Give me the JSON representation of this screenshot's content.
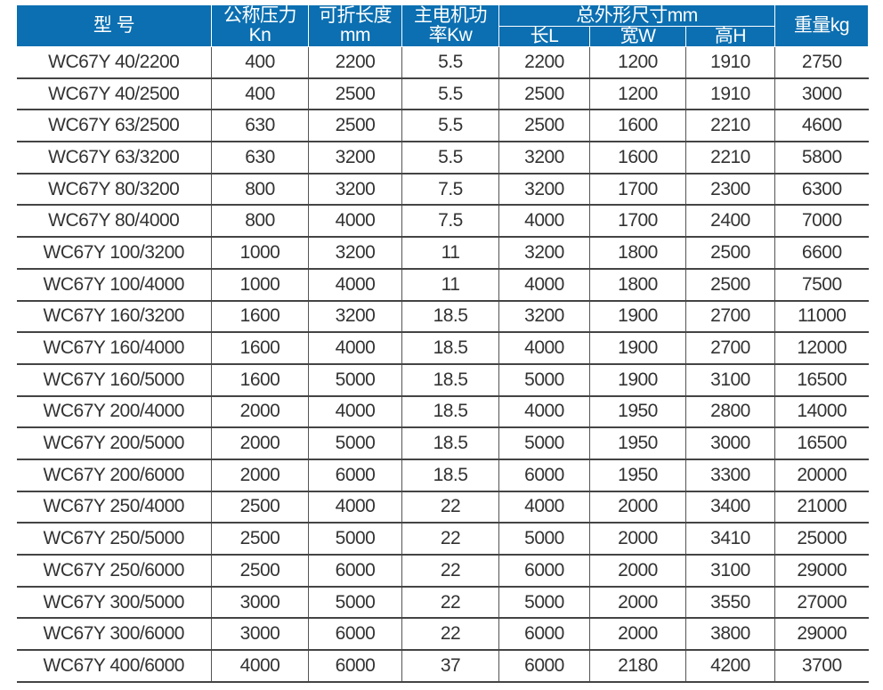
{
  "header": {
    "model": "型 号",
    "force": [
      "公称压力",
      "Kn"
    ],
    "length": [
      "可折长度",
      "mm"
    ],
    "power": [
      "主电机功",
      "率Kw"
    ],
    "dims": "总外形尺寸mm",
    "dim_l": "长L",
    "dim_w": "宽W",
    "dim_h": "高H",
    "weight": "重量kg"
  },
  "rows": [
    [
      "WC67Y 40/2200",
      "400",
      "2200",
      "5.5",
      "2200",
      "1200",
      "1910",
      "2750"
    ],
    [
      "WC67Y 40/2500",
      "400",
      "2500",
      "5.5",
      "2500",
      "1200",
      "1910",
      "3000"
    ],
    [
      "WC67Y 63/2500",
      "630",
      "2500",
      "5.5",
      "2500",
      "1600",
      "2210",
      "4600"
    ],
    [
      "WC67Y 63/3200",
      "630",
      "3200",
      "5.5",
      "3200",
      "1600",
      "2210",
      "5800"
    ],
    [
      "WC67Y 80/3200",
      "800",
      "3200",
      "7.5",
      "3200",
      "1700",
      "2300",
      "6300"
    ],
    [
      "WC67Y 80/4000",
      "800",
      "4000",
      "7.5",
      "4000",
      "1700",
      "2400",
      "7000"
    ],
    [
      "WC67Y 100/3200",
      "1000",
      "3200",
      "11",
      "3200",
      "1800",
      "2500",
      "6600"
    ],
    [
      "WC67Y 100/4000",
      "1000",
      "4000",
      "11",
      "4000",
      "1800",
      "2500",
      "7500"
    ],
    [
      "WC67Y 160/3200",
      "1600",
      "3200",
      "18.5",
      "3200",
      "1900",
      "2700",
      "11000"
    ],
    [
      "WC67Y 160/4000",
      "1600",
      "4000",
      "18.5",
      "4000",
      "1900",
      "2700",
      "12000"
    ],
    [
      "WC67Y 160/5000",
      "1600",
      "5000",
      "18.5",
      "5000",
      "1900",
      "3100",
      "16500"
    ],
    [
      "WC67Y 200/4000",
      "2000",
      "4000",
      "18.5",
      "4000",
      "1950",
      "2800",
      "14000"
    ],
    [
      "WC67Y 200/5000",
      "2000",
      "5000",
      "18.5",
      "5000",
      "1950",
      "3000",
      "16500"
    ],
    [
      "WC67Y 200/6000",
      "2000",
      "6000",
      "18.5",
      "6000",
      "1950",
      "3300",
      "20000"
    ],
    [
      "WC67Y 250/4000",
      "2500",
      "4000",
      "22",
      "4000",
      "2000",
      "3400",
      "21000"
    ],
    [
      "WC67Y 250/5000",
      "2500",
      "5000",
      "22",
      "5000",
      "2000",
      "3410",
      "25000"
    ],
    [
      "WC67Y 250/6000",
      "2500",
      "6000",
      "22",
      "6000",
      "2000",
      "3100",
      "29000"
    ],
    [
      "WC67Y 300/5000",
      "3000",
      "5000",
      "22",
      "5000",
      "2000",
      "3550",
      "27000"
    ],
    [
      "WC67Y 300/6000",
      "3000",
      "6000",
      "22",
      "6000",
      "2000",
      "3800",
      "29000"
    ],
    [
      "WC67Y 400/6000",
      "4000",
      "6000",
      "37",
      "6000",
      "2180",
      "4200",
      "3700"
    ]
  ]
}
